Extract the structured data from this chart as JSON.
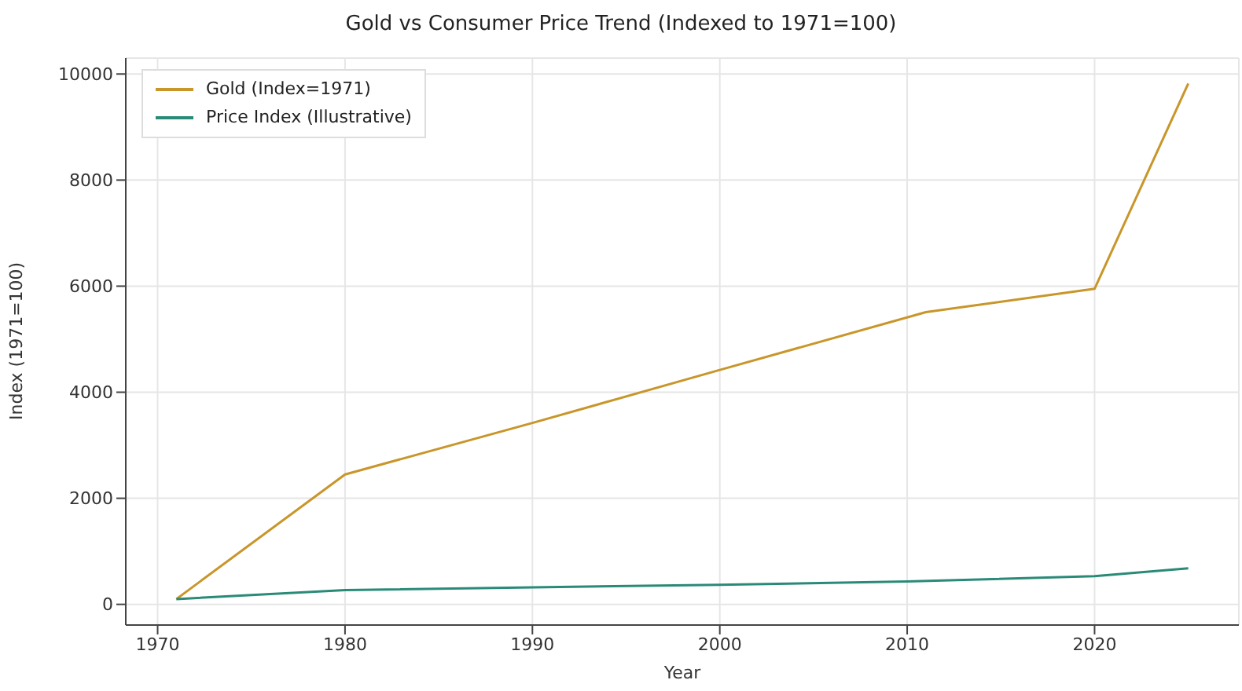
{
  "chart_data": {
    "type": "line",
    "title": "Gold vs Consumer Price Trend (Indexed to 1971=100)",
    "xlabel": "Year",
    "ylabel": "Index (1971=100)",
    "series": [
      {
        "name": "Gold (Index=1971)",
        "color": "#c8962a",
        "x": [
          1971,
          1980,
          1990,
          2000,
          2011,
          2020,
          2025
        ],
        "values": [
          100,
          2450,
          3420,
          4420,
          5510,
          5950,
          9820
        ]
      },
      {
        "name": "Price Index (Illustrative)",
        "color": "#2a8a78",
        "x": [
          1971,
          1980,
          2000,
          2010,
          2020,
          2025
        ],
        "values": [
          100,
          270,
          370,
          430,
          530,
          680
        ]
      }
    ],
    "xlim": [
      1968.3,
      2027.7
    ],
    "xticks": [
      1970,
      1980,
      1990,
      2000,
      2010,
      2020
    ],
    "ylim": [
      -390,
      10300
    ],
    "yticks": [
      0,
      2000,
      4000,
      6000,
      8000,
      10000
    ],
    "grid": true,
    "legend": "top left",
    "marker": "none",
    "line_style": "solid"
  }
}
